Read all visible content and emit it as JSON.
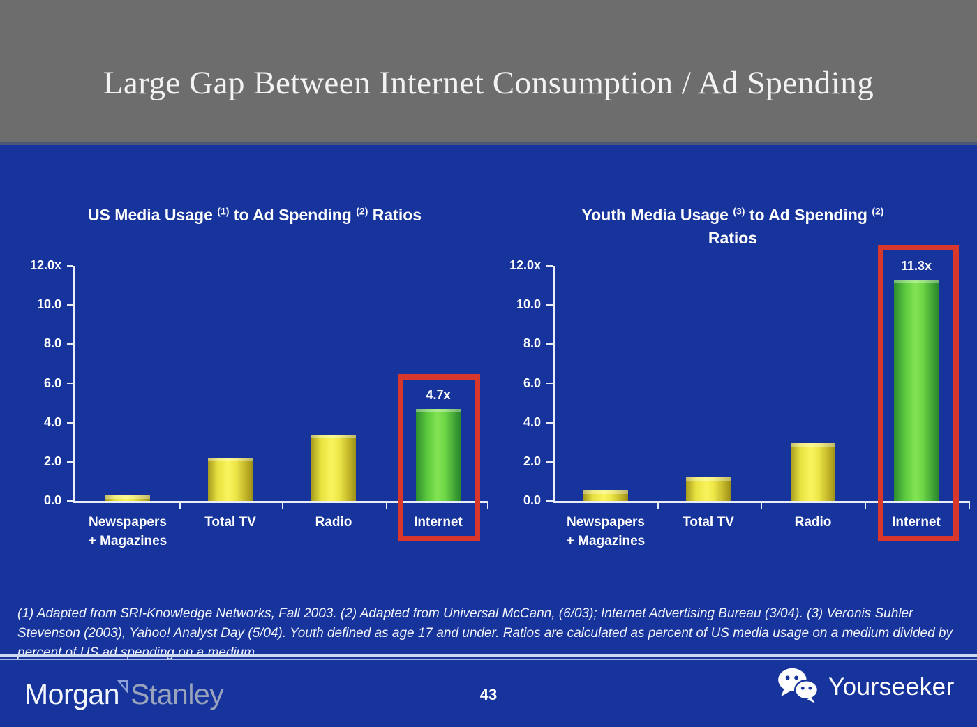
{
  "header": {
    "title": "Large Gap Between Internet Consumption / Ad Spending"
  },
  "chart_data": [
    {
      "type": "bar",
      "title_parts": [
        {
          "t": "US Media Usage "
        },
        {
          "sup": "(1)"
        },
        {
          "t": " to Ad Spending "
        },
        {
          "sup": "(2)"
        },
        {
          "t": " Ratios"
        }
      ],
      "categories": [
        "Newspapers\n+ Magazines",
        "Total TV",
        "Radio",
        "Internet"
      ],
      "values": [
        0.3,
        2.2,
        3.4,
        4.7
      ],
      "ylim": [
        0,
        12
      ],
      "yticks": [
        {
          "value": 12,
          "label": "12.0x"
        },
        {
          "value": 10,
          "label": "10.0"
        },
        {
          "value": 8,
          "label": "8.0"
        },
        {
          "value": 6,
          "label": "6.0"
        },
        {
          "value": 4,
          "label": "4.0"
        },
        {
          "value": 2,
          "label": "2.0"
        },
        {
          "value": 0,
          "label": "0.0"
        }
      ],
      "highlight": {
        "index": 3,
        "label": "4.7x",
        "box": true
      }
    },
    {
      "type": "bar",
      "title_parts": [
        {
          "t": "Youth Media Usage "
        },
        {
          "sup": "(3)"
        },
        {
          "t": " to Ad Spending "
        },
        {
          "sup": "(2)"
        },
        {
          "t": "\nRatios"
        }
      ],
      "categories": [
        "Newspapers\n+ Magazines",
        "Total TV",
        "Radio",
        "Internet"
      ],
      "values": [
        0.55,
        1.2,
        2.95,
        11.3
      ],
      "ylim": [
        0,
        12
      ],
      "yticks": [
        {
          "value": 12,
          "label": "12.0x"
        },
        {
          "value": 10,
          "label": "10.0"
        },
        {
          "value": 8,
          "label": "8.0"
        },
        {
          "value": 6,
          "label": "6.0"
        },
        {
          "value": 4,
          "label": "4.0"
        },
        {
          "value": 2,
          "label": "2.0"
        },
        {
          "value": 0,
          "label": "0.0"
        }
      ],
      "highlight": {
        "index": 3,
        "label": "11.3x",
        "box": true
      }
    }
  ],
  "footnote": "(1) Adapted from SRI-Knowledge Networks, Fall 2003.  (2) Adapted from Universal McCann, (6/03); Internet Advertising Bureau (3/04). (3) Veronis Suhler Stevenson (2003), Yahoo! Analyst Day (5/04).  Youth defined as age 17 and under.  Ratios are calculated as percent of US media usage on a medium divided by percent of US ad spending on a medium.",
  "footer": {
    "brand_part1": "Morgan",
    "brand_part2": "Stanley",
    "page_number": "43",
    "watermark": "Yourseeker"
  },
  "colors": {
    "background": "#17349c",
    "header_bg": "#6d6d6d",
    "bar_default": "#f0e73c",
    "bar_highlight": "#5fd23c",
    "highlight_box": "#d8372b"
  }
}
